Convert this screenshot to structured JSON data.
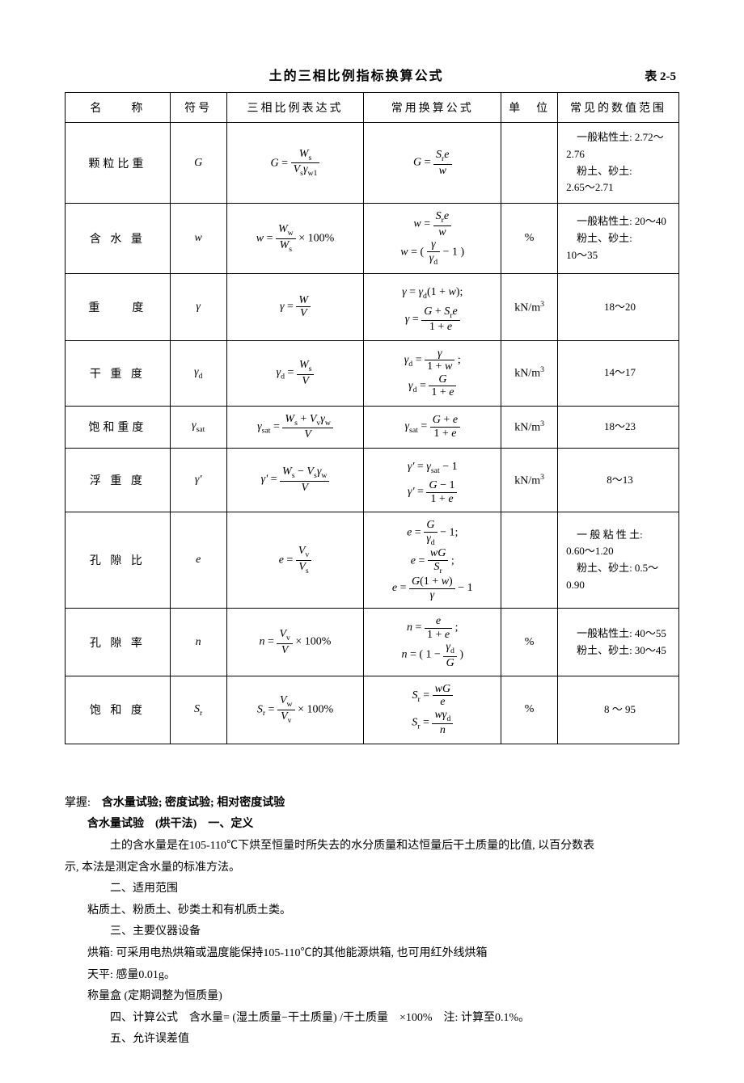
{
  "header": {
    "title": "土的三相比例指标换算公式",
    "table_no": "表 2-5"
  },
  "table": {
    "columns": [
      "名　　称",
      "符号",
      "三相比例表达式",
      "常用换算公式",
      "单　位",
      "常见的数值范围"
    ],
    "rows": [
      {
        "name": "颗粒比重",
        "symbol_html": "<span class='it'>G</span>",
        "expr_html": "<span class='it'>G</span> = <span class='frac'><span class='num'><span class='it'>W</span><span class='sub'>s</span></span><span class='den'><span class='it'>V</span><span class='sub'>s</span><span class='it'>γ</span><span class='sub'>w1</span></span></span>",
        "common_html": "<span class='it'>G</span> = <span class='frac'><span class='num'><span class='it'>S</span><span class='sub'>r</span><span class='it'>e</span></span><span class='den'><span class='it'>w</span></span></span>",
        "unit": "",
        "range_html": "　一般粘性土: 2.72～2.76<br>　粉土、砂土:<br>2.65～2.71"
      },
      {
        "name": "含 水 量",
        "symbol_html": "<span class='it'>w</span>",
        "expr_html": "<span class='it'>w</span> = <span class='frac'><span class='num'><span class='it'>W</span><span class='sub'>w</span></span><span class='den'><span class='it'>W</span><span class='sub'>s</span></span></span> × 100%",
        "common_html": "<span class='it'>w</span> = <span class='frac'><span class='num'><span class='it'>S</span><span class='sub'>r</span><span class='it'>e</span></span><span class='den'><span class='it'>w</span></span></span><br><span class='it'>w</span> = ( <span class='frac'><span class='num'><span class='it'>γ</span></span><span class='den'><span class='it'>γ</span><span class='sub'>d</span></span></span> − 1 )",
        "unit": "%",
        "range_html": "　一般粘性土: 20～40<br>　粉土、砂土:<br>10～35"
      },
      {
        "name": "重　　度",
        "symbol_html": "<span class='it'>γ</span>",
        "expr_html": "<span class='it'>γ</span> = <span class='frac'><span class='num'><span class='it'>W</span></span><span class='den'><span class='it'>V</span></span></span>",
        "common_html": "<span class='it'>γ</span> = <span class='it'>γ</span><span class='sub'>d</span>(1 + <span class='it'>w</span>);<br><span class='it'>γ</span> = <span class='frac'><span class='num'><span class='it'>G</span> + <span class='it'>S</span><span class='sub'>r</span><span class='it'>e</span></span><span class='den'>1 + <span class='it'>e</span></span></span>",
        "unit_html": "kN/m<span class='sup'>3</span>",
        "range": "18～20"
      },
      {
        "name": "干 重 度",
        "symbol_html": "<span class='it'>γ</span><span class='sub'>d</span>",
        "expr_html": "<span class='it'>γ</span><span class='sub'>d</span> = <span class='frac'><span class='num'><span class='it'>W</span><span class='sub'>s</span></span><span class='den'><span class='it'>V</span></span></span>",
        "common_html": "<span class='it'>γ</span><span class='sub'>d</span> = <span class='frac'><span class='num'><span class='it'>γ</span></span><span class='den'>1 + <span class='it'>w</span></span></span> ;<br><span class='it'>γ</span><span class='sub'>d</span> = <span class='frac'><span class='num'><span class='it'>G</span></span><span class='den'>1 + <span class='it'>e</span></span></span>",
        "unit_html": "kN/m<span class='sup'>3</span>",
        "range": "14～17"
      },
      {
        "name": "饱和重度",
        "symbol_html": "<span class='it'>γ</span><span class='sub'>sat</span>",
        "expr_html": "<span class='it'>γ</span><span class='sub'>sat</span> = <span class='frac'><span class='num'><span class='it'>W</span><span class='sub'>s</span> + <span class='it'>V</span><span class='sub'>v</span><span class='it'>γ</span><span class='sub'>w</span></span><span class='den'><span class='it'>V</span></span></span>",
        "common_html": "<span class='it'>γ</span><span class='sub'>sat</span> = <span class='frac'><span class='num'><span class='it'>G</span> + <span class='it'>e</span></span><span class='den'>1 + <span class='it'>e</span></span></span>",
        "unit_html": "kN/m<span class='sup'>3</span>",
        "range": "18～23"
      },
      {
        "name": "浮 重 度",
        "symbol_html": "<span class='it'>γ'</span>",
        "expr_html": "<span class='it'>γ'</span> = <span class='frac'><span class='num'><span class='it'>W</span><span class='sub'>s</span> − <span class='it'>V</span><span class='sub'>s</span><span class='it'>γ</span><span class='sub'>w</span></span><span class='den'><span class='it'>V</span></span></span>",
        "common_html": "<span class='it'>γ'</span> = <span class='it'>γ</span><span class='sub'>sat</span> − 1<br><span class='it'>γ'</span> = <span class='frac'><span class='num'><span class='it'>G</span> − 1</span><span class='den'>1 + <span class='it'>e</span></span></span>",
        "unit_html": "kN/m<span class='sup'>3</span>",
        "range": "8～13"
      },
      {
        "name": "孔 隙 比",
        "symbol_html": "<span class='it'>e</span>",
        "expr_html": "<span class='it'>e</span> = <span class='frac'><span class='num'><span class='it'>V</span><span class='sub'>v</span></span><span class='den'><span class='it'>V</span><span class='sub'>s</span></span></span>",
        "common_html": "<span class='it'>e</span> = <span class='frac'><span class='num'><span class='it'>G</span></span><span class='den'><span class='it'>γ</span><span class='sub'>d</span></span></span> − 1;<br><span class='it'>e</span> = <span class='frac'><span class='num'><span class='it'>wG</span></span><span class='den'><span class='it'>S</span><span class='sub'>r</span></span></span> ;<br><span class='it'>e</span> = <span class='frac'><span class='num'><span class='it'>G</span>(1 + <span class='it'>w</span>)</span><span class='den'><span class='it'>γ</span></span></span> − 1",
        "unit": "",
        "range_html": "　一 般 粘 性 土:<br>0.60～1.20<br>　粉土、砂土: 0.5～0.90"
      },
      {
        "name": "孔 隙 率",
        "symbol_html": "<span class='it'>n</span>",
        "expr_html": "<span class='it'>n</span> = <span class='frac'><span class='num'><span class='it'>V</span><span class='sub'>v</span></span><span class='den'><span class='it'>V</span></span></span> × 100%",
        "common_html": "<span class='it'>n</span> = <span class='frac'><span class='num'><span class='it'>e</span></span><span class='den'>1 + <span class='it'>e</span></span></span> ;<br><span class='it'>n</span> = ( 1 − <span class='frac'><span class='num'><span class='it'>γ</span><span class='sub'>d</span></span><span class='den'><span class='it'>G</span></span></span> )",
        "unit": "%",
        "range_html": "　一般粘性土: 40～55<br>　粉土、砂土: 30～45"
      },
      {
        "name": "饱 和 度",
        "symbol_html": "<span class='it'>S</span><span class='sub'>r</span>",
        "expr_html": "<span class='it'>S</span><span class='sub'>r</span> = <span class='frac'><span class='num'><span class='it'>V</span><span class='sub'>w</span></span><span class='den'><span class='it'>V</span><span class='sub'>v</span></span></span> × 100%",
        "common_html": "<span class='it'>S</span><span class='sub'>r</span> = <span class='frac'><span class='num'><span class='it'>wG</span></span><span class='den'><span class='it'>e</span></span></span><br><span class='it'>S</span><span class='sub'>r</span> = <span class='frac'><span class='num'><span class='it'>wγ</span><span class='sub'>d</span></span><span class='den'><span class='it'>n</span></span></span>",
        "unit": "%",
        "range": "8 ～ 95"
      }
    ]
  },
  "section": {
    "master_line": "掌握:　含水量试验; 密度试验; 相对密度试验",
    "h1": "含水量试验　(烘干法)　一、定义",
    "p1": "土的含水量是在105-110℃下烘至恒量时所失去的水分质量和达恒量后干土质量的比值, 以百分数表",
    "p1b": "示, 本法是测定含水量的标准方法。",
    "h2": "二、适用范围",
    "p2": "粘质土、粉质土、砂类土和有机质土类。",
    "h3": "三、主要仪器设备",
    "p3a": "烘箱: 可采用电热烘箱或温度能保持105-110℃的其他能源烘箱, 也可用红外线烘箱",
    "p3b": "天平: 感量0.01g。",
    "p3c": "称量盒 (定期调整为恒质量)",
    "h4": "四、计算公式　含水量= (湿土质量−干土质量) /干土质量　×100%　注: 计算至0.1%。",
    "h5": "五、允许误差值"
  }
}
